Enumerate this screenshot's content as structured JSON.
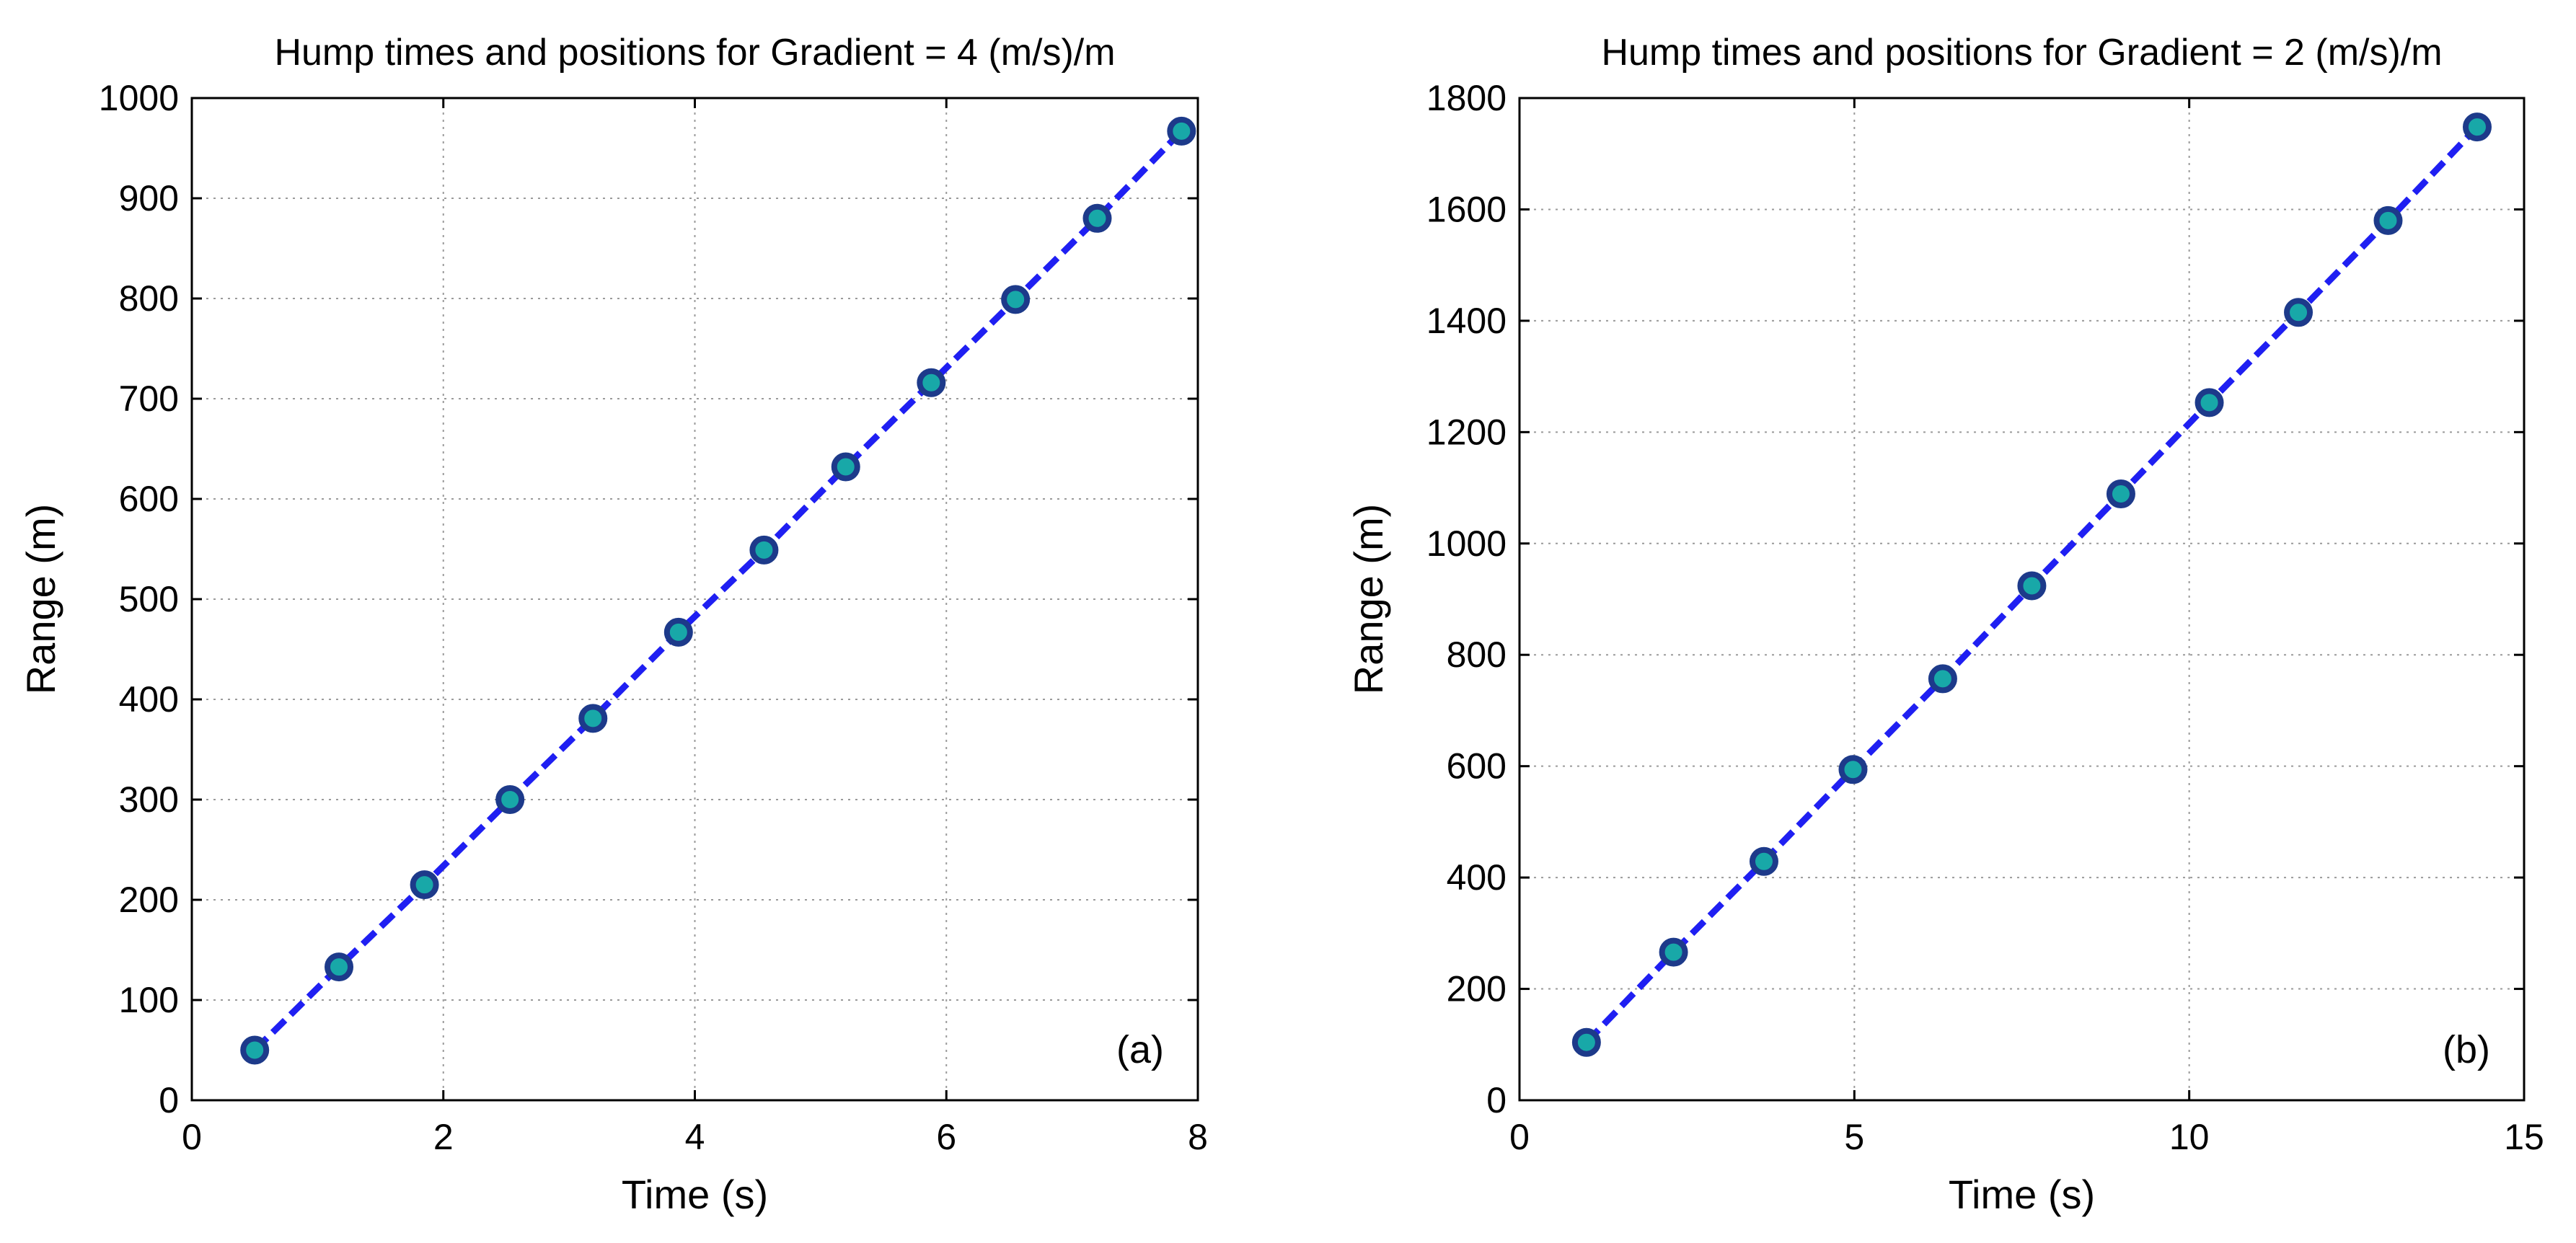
{
  "colors": {
    "line": "#1f1ff2",
    "marker_edge": "#1d3a8a",
    "marker_fill": "#18a8a8",
    "grid": "#9a9a9a",
    "axis": "#000000"
  },
  "chart_data": [
    {
      "type": "line",
      "title": "Hump times and positions for Gradient = 4 (m/s)/m",
      "xlabel": "Time (s)",
      "ylabel": "Range (m)",
      "panel_label": "(a)",
      "xlim": [
        0,
        8
      ],
      "ylim": [
        0,
        1000
      ],
      "xticks": [
        0,
        2,
        4,
        6,
        8
      ],
      "yticks": [
        0,
        100,
        200,
        300,
        400,
        500,
        600,
        700,
        800,
        900,
        1000
      ],
      "xticklabels": [
        "0",
        "2",
        "4",
        "6",
        "8"
      ],
      "yticklabels": [
        "0",
        "100",
        "200",
        "300",
        "400",
        "500",
        "600",
        "700",
        "800",
        "900",
        "1000"
      ],
      "grid": true,
      "line_style": "dashed",
      "marker": "circle",
      "series": [
        {
          "x": [
            0.5,
            1.17,
            1.85,
            2.53,
            3.19,
            3.87,
            4.55,
            5.2,
            5.88,
            6.55,
            7.2,
            7.87
          ],
          "y": [
            50,
            133,
            215,
            300,
            381,
            467,
            549,
            632,
            716,
            799,
            880,
            967
          ]
        }
      ]
    },
    {
      "type": "line",
      "title": "Hump times and positions for Gradient = 2 (m/s)/m",
      "xlabel": "Time (s)",
      "ylabel": "Range (m)",
      "panel_label": "(b)",
      "xlim": [
        0,
        15
      ],
      "ylim": [
        0,
        1800
      ],
      "xticks": [
        0,
        5,
        10,
        15
      ],
      "yticks": [
        0,
        200,
        400,
        600,
        800,
        1000,
        1200,
        1400,
        1600,
        1800
      ],
      "xticklabels": [
        "0",
        "5",
        "10",
        "15"
      ],
      "yticklabels": [
        "0",
        "200",
        "400",
        "600",
        "800",
        "1000",
        "1200",
        "1400",
        "1600",
        "1800"
      ],
      "grid": true,
      "line_style": "dashed",
      "marker": "circle",
      "series": [
        {
          "x": [
            1.0,
            2.3,
            3.65,
            4.98,
            6.32,
            7.65,
            8.98,
            10.3,
            11.63,
            12.97,
            14.3
          ],
          "y": [
            104,
            266,
            429,
            594,
            757,
            924,
            1089,
            1253,
            1415,
            1580,
            1748
          ]
        }
      ]
    }
  ]
}
